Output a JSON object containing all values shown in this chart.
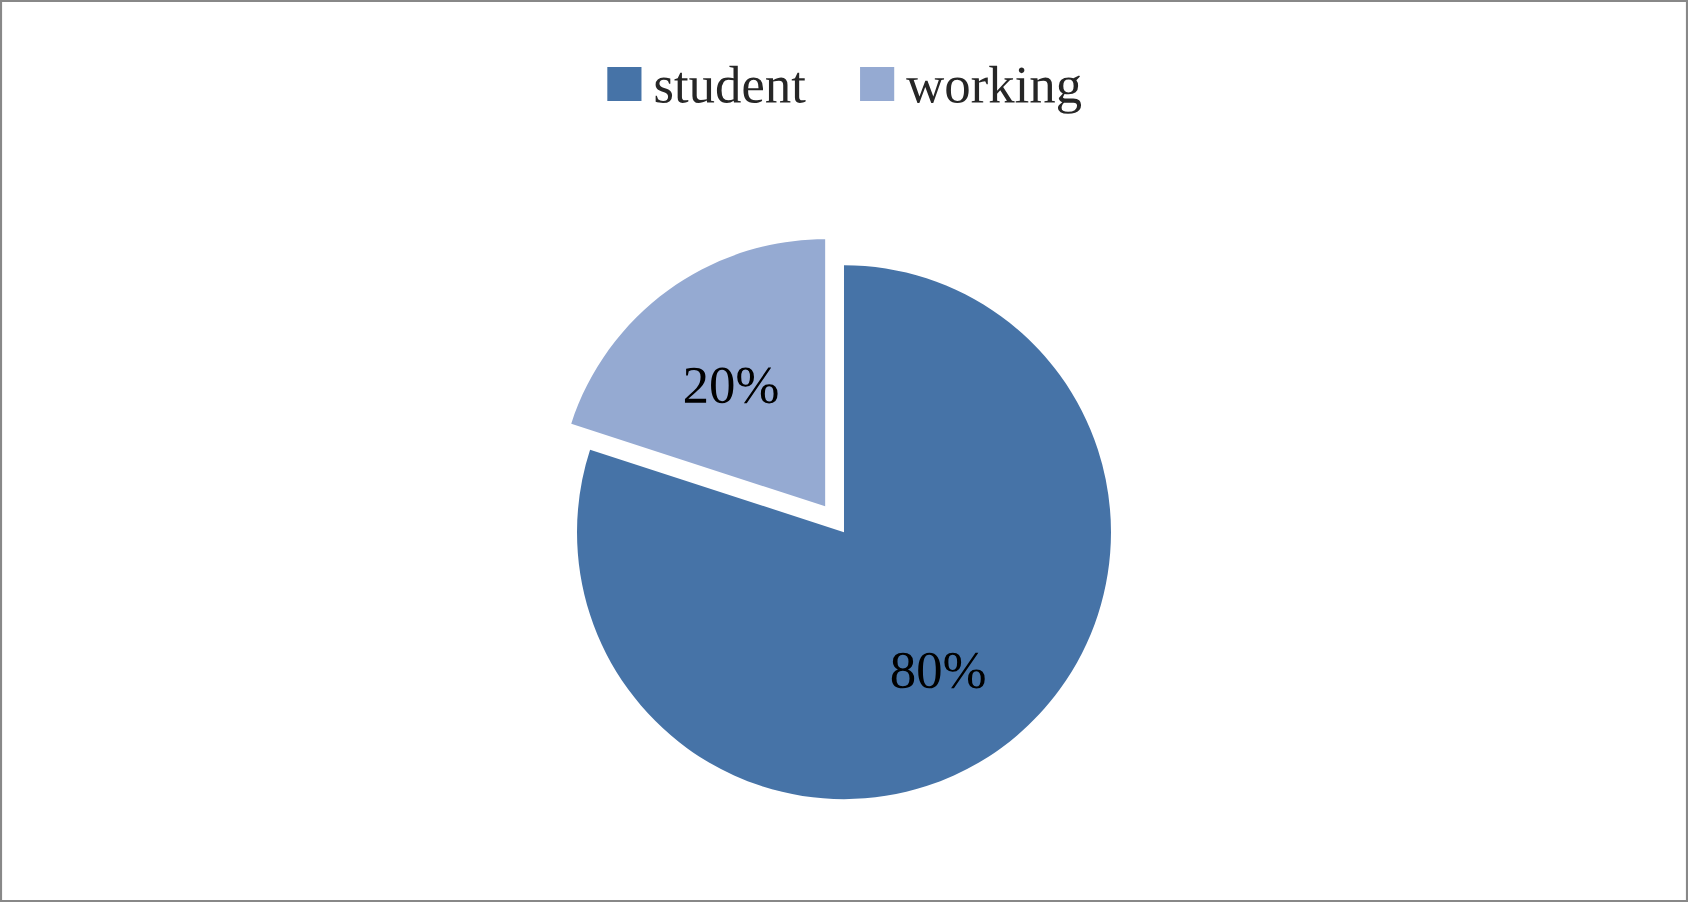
{
  "chart_data": {
    "type": "pie",
    "categories": [
      "student",
      "working"
    ],
    "values": [
      80,
      20
    ],
    "colors": [
      "#4673a7",
      "#95aad2"
    ],
    "value_labels": [
      "80%",
      "20%"
    ],
    "legend": "top"
  }
}
